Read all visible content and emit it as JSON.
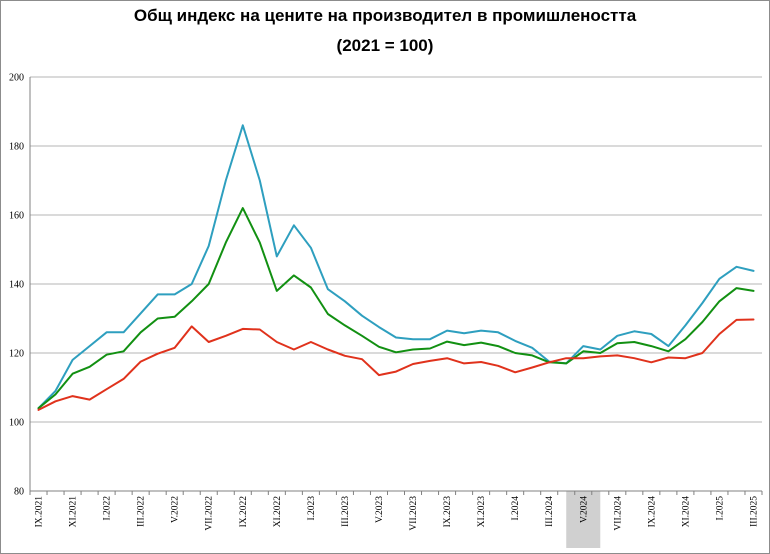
{
  "chart_data": {
    "type": "line",
    "title": "Общ индекс на цените на производител в промишлеността",
    "subtitle": "(2021 = 100)",
    "xlabel": "",
    "ylabel": "",
    "ylim": [
      80,
      200
    ],
    "y_ticks": [
      80,
      100,
      120,
      140,
      160,
      180,
      200
    ],
    "grid": "horizontal",
    "highlighted_category": "V.2024",
    "highlight_color": "#d0d0d0",
    "categories": [
      "IX.2021",
      "X.2021",
      "XI.2021",
      "XII.2021",
      "I.2022",
      "II.2022",
      "III.2022",
      "IV.2022",
      "V.2022",
      "VI.2022",
      "VII.2022",
      "VIII.2022",
      "IX.2022",
      "X.2022",
      "XI.2022",
      "XII.2022",
      "I.2023",
      "II.2023",
      "III.2023",
      "IV.2023",
      "V.2023",
      "VI.2023",
      "VII.2023",
      "VIII.2023",
      "IX.2023",
      "X.2023",
      "XI.2023",
      "XII.2023",
      "I.2024",
      "II.2024",
      "III.2024",
      "IV.2024",
      "V.2024",
      "VI.2024",
      "VII.2024",
      "VIII.2024",
      "IX.2024",
      "X.2024",
      "XI.2024",
      "XII.2024",
      "I.2025",
      "II.2025",
      "III.2025"
    ],
    "tick_labels": [
      "IX.2021",
      "XI.2021",
      "I.2022",
      "III.2022",
      "V.2022",
      "VII.2022",
      "IX.2022",
      "XI.2022",
      "I.2023",
      "III.2023",
      "V.2023",
      "VII.2023",
      "IX.2023",
      "XI.2023",
      "I.2024",
      "III.2024",
      "V.2024",
      "VII.2024",
      "IX.2024",
      "XI.2024",
      "I.2025",
      "III.2025"
    ],
    "series": [
      {
        "color": "#2e9fbf",
        "values": [
          104,
          109,
          118,
          122,
          126,
          126,
          131.5,
          137,
          137,
          140,
          151,
          170,
          186,
          170,
          148,
          157,
          150.5,
          138.5,
          135,
          130.8,
          127.5,
          124.5,
          124,
          124,
          126.5,
          125.7,
          126.5,
          126,
          123.5,
          121.5,
          117.5,
          117,
          122,
          121,
          125,
          126.3,
          125.5,
          122,
          128,
          134.5,
          141.5,
          145,
          143.8
        ]
      },
      {
        "color": "#129012",
        "values": [
          104,
          108,
          114,
          116,
          119.5,
          120.5,
          126,
          130,
          130.5,
          135,
          140,
          152,
          162,
          152,
          138,
          142.5,
          139,
          131.3,
          128,
          125,
          121.8,
          120.2,
          121,
          121.3,
          123.3,
          122.3,
          123,
          122,
          120,
          119.3,
          117.3,
          117,
          120.5,
          120,
          122.8,
          123.2,
          122,
          120.5,
          124,
          129,
          135,
          138.8,
          138
        ]
      },
      {
        "color": "#e0321c",
        "values": [
          103.5,
          106,
          107.5,
          106.5,
          109.5,
          112.5,
          117.5,
          119.8,
          121.5,
          127.7,
          123.2,
          125,
          127,
          126.8,
          123.2,
          121,
          123.2,
          121,
          119.2,
          118.2,
          113.6,
          114.6,
          116.8,
          117.7,
          118.5,
          117,
          117.4,
          116.3,
          114.4,
          115.8,
          117.3,
          118.5,
          118.5,
          119,
          119.3,
          118.5,
          117.3,
          118.7,
          118.5,
          120,
          125.5,
          129.6,
          129.7
        ]
      }
    ]
  }
}
